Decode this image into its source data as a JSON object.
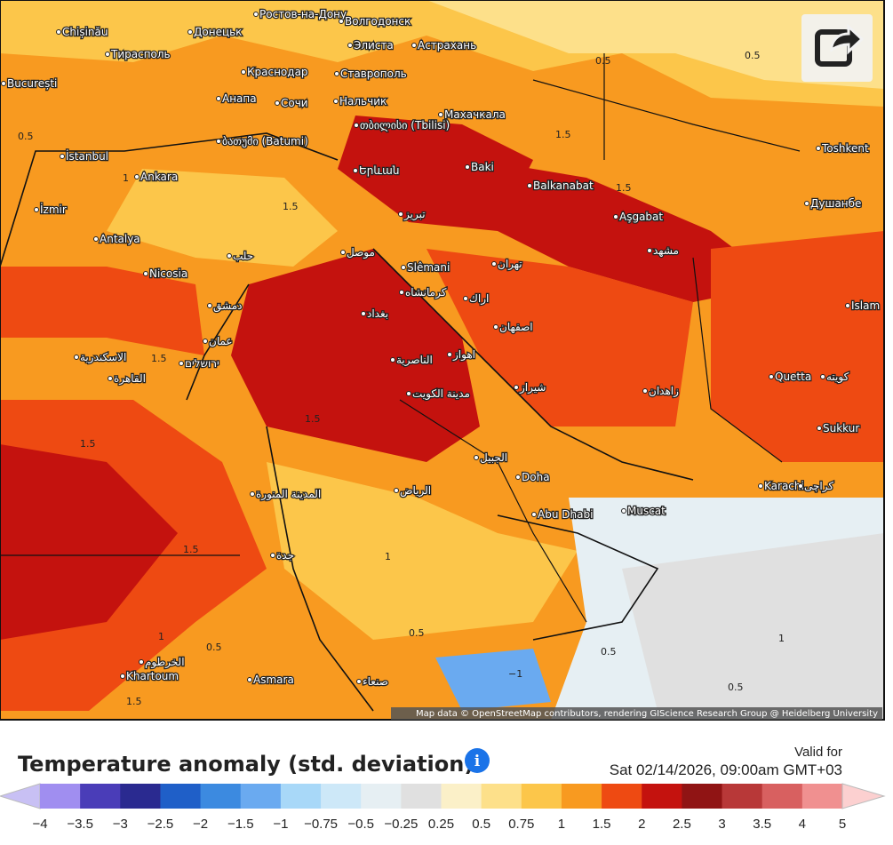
{
  "header": {
    "title": "Temperature anomaly (std. deviation)",
    "valid_for": "Valid for",
    "valid_time": "Sat 02/14/2026, 09:00am GMT+03"
  },
  "map": {
    "attribution": "Map data © OpenStreetMap contributors, rendering GIScience Research Group @ Heidelberg University",
    "cities": [
      "Chișinău",
      "Тирасполь",
      "București",
      "Донецьк",
      "Ростов-на-Дону",
      "Волгодонск",
      "Элиста",
      "Астрахань",
      "Краснодар",
      "Ставрополь",
      "Анапа",
      "Сочи",
      "Нальчик",
      "Махачкала",
      "ბათუმი (Batumi)",
      "თბილისი (Tbilisi)",
      "İstanbul",
      "Baki",
      "Ankara",
      "Balkanabat",
      "Երևան",
      "İzmir",
      "تبریز",
      "Aşgabat",
      "Antalya",
      "Toshkent",
      "Душанбе",
      "موصل",
      "Nicosia",
      "Slêmani",
      "تهران",
      "مشهد",
      "حلب",
      "بغداد",
      "كرمانشاه",
      "اراك",
      "اصفهان",
      "دمشق",
      "Islam",
      "عمان",
      "الاسكندرية",
      "ירושלים",
      "القاهرة",
      "الناصرية",
      "اهواز",
      "مدينة الكويت",
      "شيراز",
      "زاهدان",
      "Quetta",
      "كويته",
      "Sukkur",
      "الجبيل",
      "Doha",
      "المدينة المنورة",
      "الرياض",
      "Karachi",
      "كراچی",
      "Abu Dhabi",
      "Muscat",
      "جدة",
      "الخرطوم",
      "Khartoum",
      "Asmara",
      "صنعاء"
    ],
    "contour_labels": [
      "0.5",
      "0.5",
      "1.5",
      "1.5",
      "1.5",
      "1",
      "0.5",
      "1.5",
      "1.5",
      "1.5",
      "1.5",
      "1",
      "0.5",
      "0.5",
      "1",
      "0.5",
      "−1",
      "0.5",
      "1",
      "1.5"
    ]
  },
  "legend": {
    "labels": [
      "−4",
      "−3.5",
      "−3",
      "−2.5",
      "−2",
      "−1.5",
      "−1",
      "−0.75",
      "−0.5",
      "−0.25",
      "0.25",
      "0.5",
      "0.75",
      "1",
      "1.5",
      "2",
      "2.5",
      "3",
      "3.5",
      "4",
      "5"
    ],
    "colors": [
      "#c8c0f4",
      "#a08ef0",
      "#4a3db8",
      "#2a2a90",
      "#1f5fc8",
      "#3c8ae0",
      "#6aaaf0",
      "#a8d8f8",
      "#cde8f8",
      "#e6eff3",
      "#e0e0e0",
      "#fbf0c8",
      "#fde08a",
      "#fcc64a",
      "#f89a20",
      "#ee4a12",
      "#c4120e",
      "#901414",
      "#b83838",
      "#d86060",
      "#f09090",
      "#fcd0d0"
    ]
  }
}
